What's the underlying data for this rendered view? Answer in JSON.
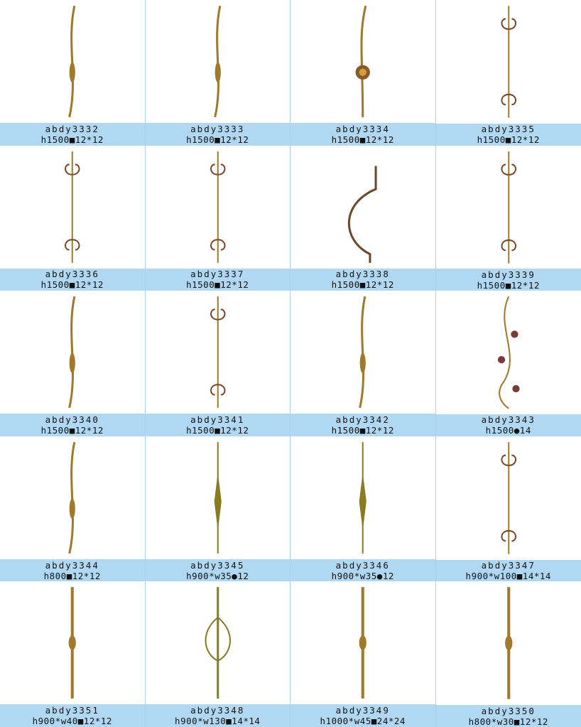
{
  "accent_band_color": "#b0d8f2",
  "item_color": "#a07a2a",
  "products": [
    {
      "code": "abdy3332",
      "spec": "h1500■12*12",
      "style": "curve"
    },
    {
      "code": "abdy3333",
      "spec": "h1500■12*12",
      "style": "curve"
    },
    {
      "code": "abdy3334",
      "spec": "h1500■12*12",
      "style": "medallion"
    },
    {
      "code": "abdy3335",
      "spec": "h1500■12*12",
      "style": "scroll"
    },
    {
      "code": "abdy3336",
      "spec": "h1500■12*12",
      "style": "scroll"
    },
    {
      "code": "abdy3337",
      "spec": "h1500■12*12",
      "style": "scroll"
    },
    {
      "code": "abdy3338",
      "spec": "h1500■12*12",
      "style": "bow"
    },
    {
      "code": "abdy3339",
      "spec": "h1500■12*12",
      "style": "scroll"
    },
    {
      "code": "abdy3340",
      "spec": "h1500■12*12",
      "style": "curve"
    },
    {
      "code": "abdy3341",
      "spec": "h1500■12*12",
      "style": "scroll"
    },
    {
      "code": "abdy3342",
      "spec": "h1500■12*12",
      "style": "curve"
    },
    {
      "code": "abdy3343",
      "spec": "h1500●14",
      "style": "leaf"
    },
    {
      "code": "abdy3344",
      "spec": "h800■12*12",
      "style": "curve"
    },
    {
      "code": "abdy3345",
      "spec": "h900*w35●12",
      "style": "spindle"
    },
    {
      "code": "abdy3346",
      "spec": "h900*w35●12",
      "style": "spindle"
    },
    {
      "code": "abdy3347",
      "spec": "h900*w100■14*14",
      "style": "scroll"
    },
    {
      "code": "abdy3351",
      "spec": "h900*w40■12*12",
      "style": "straight"
    },
    {
      "code": "abdy3348",
      "spec": "h900*w130■14*14",
      "style": "loop"
    },
    {
      "code": "abdy3349",
      "spec": "h1000*w45■24*24",
      "style": "straight"
    },
    {
      "code": "abdy3350",
      "spec": "h800*w30■12*12",
      "style": "straight"
    }
  ]
}
